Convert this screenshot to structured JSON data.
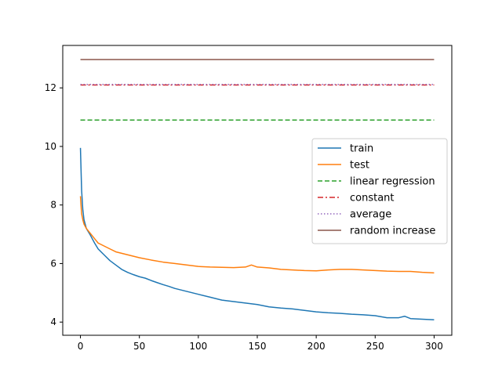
{
  "chart_data": {
    "type": "line",
    "title": "",
    "xlabel": "",
    "ylabel": "",
    "xlim": [
      -15,
      315
    ],
    "ylim": [
      3.55,
      13.45
    ],
    "xticks": [
      0,
      50,
      100,
      150,
      200,
      250,
      300
    ],
    "yticks": [
      4,
      6,
      8,
      10,
      12
    ],
    "xtick_labels": [
      "0",
      "50",
      "100",
      "150",
      "200",
      "250",
      "300"
    ],
    "ytick_labels": [
      "4",
      "6",
      "8",
      "10",
      "12"
    ],
    "grid": false,
    "legend_position": "center-right",
    "series": [
      {
        "name": "train",
        "color": "#1f77b4",
        "style": "solid",
        "x": [
          0,
          1,
          2,
          3,
          5,
          8,
          10,
          12,
          15,
          20,
          25,
          30,
          35,
          40,
          45,
          50,
          55,
          60,
          65,
          70,
          75,
          80,
          85,
          90,
          95,
          100,
          110,
          120,
          130,
          140,
          150,
          160,
          170,
          180,
          190,
          200,
          210,
          220,
          230,
          240,
          250,
          260,
          270,
          275,
          280,
          290,
          300
        ],
        "y": [
          9.95,
          8.5,
          7.85,
          7.5,
          7.2,
          7.0,
          6.85,
          6.7,
          6.5,
          6.3,
          6.1,
          5.95,
          5.8,
          5.7,
          5.62,
          5.55,
          5.5,
          5.42,
          5.35,
          5.28,
          5.22,
          5.15,
          5.1,
          5.05,
          5.0,
          4.95,
          4.85,
          4.75,
          4.7,
          4.65,
          4.6,
          4.52,
          4.48,
          4.45,
          4.4,
          4.35,
          4.32,
          4.3,
          4.27,
          4.25,
          4.22,
          4.15,
          4.15,
          4.2,
          4.12,
          4.1,
          4.08
        ]
      },
      {
        "name": "test",
        "color": "#ff7f0e",
        "style": "solid",
        "x": [
          0,
          1,
          2,
          3,
          5,
          8,
          10,
          12,
          15,
          20,
          25,
          30,
          40,
          50,
          60,
          70,
          80,
          90,
          100,
          110,
          120,
          130,
          140,
          145,
          150,
          160,
          170,
          180,
          190,
          200,
          210,
          220,
          230,
          240,
          250,
          260,
          270,
          280,
          290,
          300
        ],
        "y": [
          8.3,
          7.7,
          7.5,
          7.35,
          7.2,
          7.05,
          6.95,
          6.85,
          6.7,
          6.6,
          6.5,
          6.4,
          6.3,
          6.2,
          6.12,
          6.05,
          6.0,
          5.95,
          5.9,
          5.88,
          5.87,
          5.86,
          5.88,
          5.95,
          5.88,
          5.85,
          5.8,
          5.78,
          5.76,
          5.75,
          5.78,
          5.8,
          5.8,
          5.78,
          5.76,
          5.74,
          5.73,
          5.73,
          5.7,
          5.68
        ]
      },
      {
        "name": "linear regression",
        "color": "#2ca02c",
        "style": "dashed",
        "x": [
          0,
          300
        ],
        "y": [
          10.9,
          10.9
        ]
      },
      {
        "name": "constant",
        "color": "#d62728",
        "style": "dashdot",
        "x": [
          0,
          300
        ],
        "y": [
          12.1,
          12.1
        ]
      },
      {
        "name": "average",
        "color": "#9467bd",
        "style": "dotted",
        "x": [
          0,
          300
        ],
        "y": [
          12.12,
          12.12
        ]
      },
      {
        "name": "random increase",
        "color": "#8c564b",
        "style": "solid",
        "x": [
          0,
          300
        ],
        "y": [
          12.97,
          12.97
        ]
      }
    ]
  }
}
